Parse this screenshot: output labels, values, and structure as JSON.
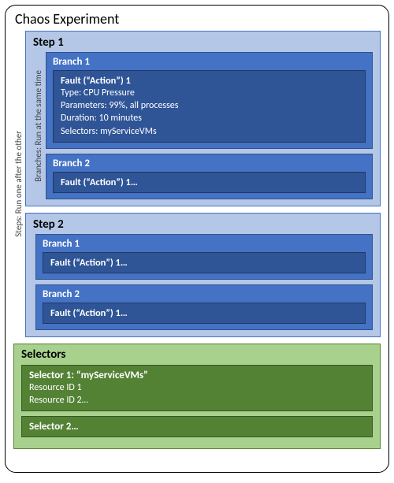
{
  "title": "Chaos Experiment",
  "labels": {
    "steps_v": "Steps: Run one after the other",
    "branches_v": "Branches: Run at the same time"
  },
  "colors": {
    "step_bg": "#b4c7e7",
    "step_border": "#4472c4",
    "branch_bg": "#4472c4",
    "branch_border": "#2f528f",
    "fault_bg": "#2f5597",
    "fault_border": "#203864",
    "sel_bg": "#a9d18e",
    "sel_border": "#548235",
    "sel_inner_bg": "#548235",
    "sel_inner_border": "#385723"
  },
  "steps": [
    {
      "title": "Step 1",
      "show_branch_label": true,
      "branches": [
        {
          "title": "Branch 1",
          "faults": [
            {
              "title": "Fault (“Action”) 1",
              "lines": [
                "Type: CPU Pressure",
                "Parameters: 99%, all processes",
                "Duration: 10 minutes",
                "Selectors: myServiceVMs"
              ]
            }
          ]
        },
        {
          "title": "Branch 2",
          "faults": [
            {
              "title": "Fault (“Action”) 1…",
              "lines": []
            }
          ]
        }
      ]
    },
    {
      "title": "Step 2",
      "show_branch_label": false,
      "branches": [
        {
          "title": "Branch 1",
          "faults": [
            {
              "title": "Fault (“Action”) 1…",
              "lines": []
            }
          ]
        },
        {
          "title": "Branch 2",
          "faults": [
            {
              "title": "Fault (“Action”) 1…",
              "lines": []
            }
          ]
        }
      ]
    }
  ],
  "selectors": {
    "title": "Selectors",
    "items": [
      {
        "name": "Selector 1: “myServiceVMs”",
        "lines": [
          "Resource ID 1",
          "Resource ID 2…"
        ]
      },
      {
        "name": "Selector 2…",
        "lines": []
      }
    ]
  }
}
